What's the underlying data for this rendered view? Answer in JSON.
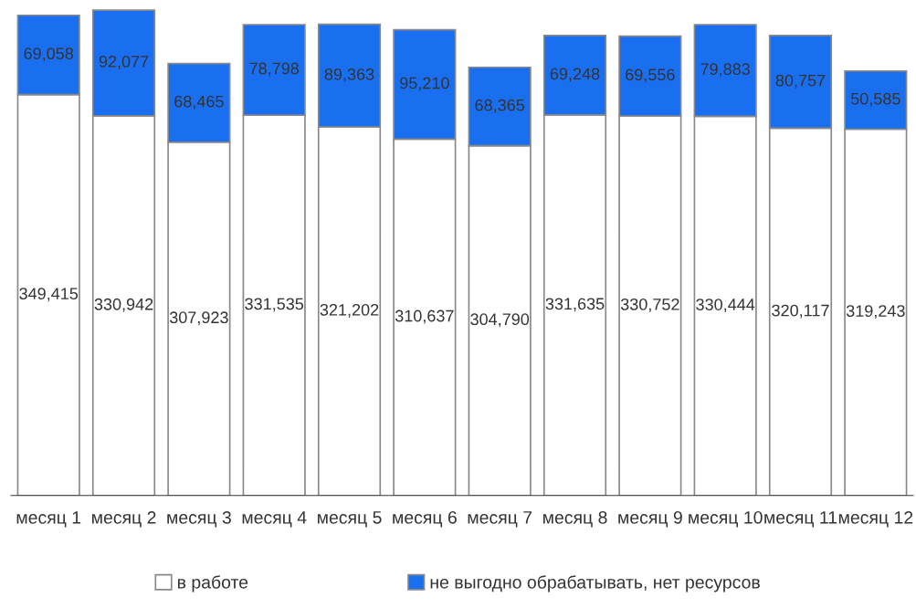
{
  "chart_data": {
    "type": "bar",
    "stacked": true,
    "categories": [
      "месяц 1",
      "месяц 2",
      "месяц 3",
      "месяц 4",
      "месяц 5",
      "месяц 6",
      "месяц 7",
      "месяц 8",
      "месяц 9",
      "месяц 10",
      "месяц 11",
      "месяц 12"
    ],
    "series": [
      {
        "name": "в работе",
        "color": "#ffffff",
        "values": [
          349415,
          330942,
          307923,
          331535,
          321202,
          310637,
          304790,
          331635,
          330752,
          330444,
          320117,
          319243
        ],
        "value_labels": [
          "349,415",
          "330,942",
          "307,923",
          "331,535",
          "321,202",
          "310,637",
          "304,790",
          "331,635",
          "330,752",
          "330,444",
          "320,117",
          "319,243"
        ]
      },
      {
        "name": "не выгодно обрабатывать, нет ресурсов",
        "color": "#1a6ff0",
        "values": [
          69058,
          92077,
          68465,
          78798,
          89363,
          95210,
          68365,
          69248,
          69556,
          79883,
          80757,
          50585
        ],
        "value_labels": [
          "69,058",
          "92,077",
          "68,465",
          "78,798",
          "89,363",
          "95,210",
          "68,365",
          "69,248",
          "69,556",
          "79,883",
          "80,757",
          "50,585"
        ]
      }
    ],
    "legend": "bottom",
    "grid": false
  }
}
